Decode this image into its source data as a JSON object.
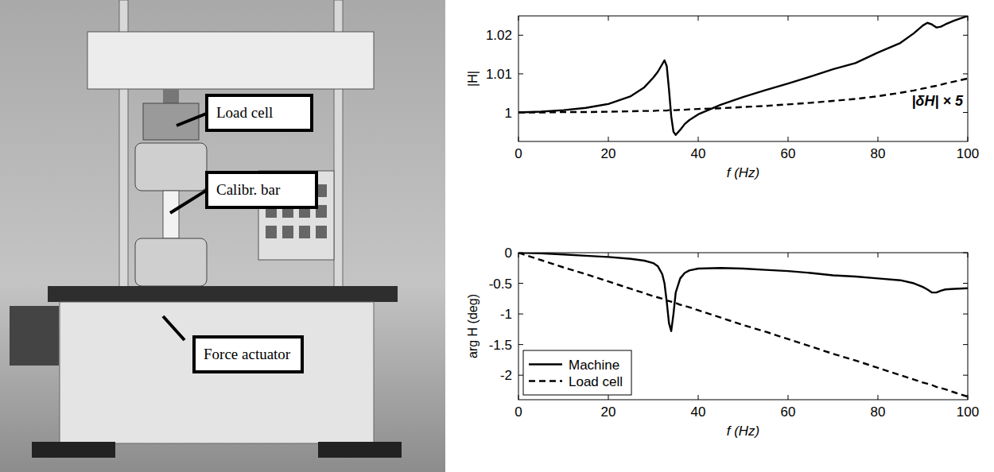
{
  "figure": {
    "labels": [
      "Load cell",
      "Calibr. bar",
      "Force actuator"
    ]
  },
  "chart_data": [
    {
      "type": "line",
      "y_label": "|H|",
      "x_label": "f (Hz)",
      "annotations": [
        "|δH| × 5"
      ],
      "x": [
        0,
        5,
        10,
        15,
        20,
        25,
        28,
        30,
        31,
        32,
        32.5,
        33,
        33.5,
        34,
        34.5,
        35,
        36,
        37,
        38,
        40,
        45,
        50,
        55,
        60,
        65,
        70,
        75,
        80,
        85,
        88,
        90,
        91,
        92,
        93,
        94,
        95,
        97,
        100
      ],
      "xlim": [
        0,
        100
      ],
      "xticks": [
        0,
        20,
        40,
        60,
        80,
        100
      ],
      "ylim": [
        0.9925,
        1.025
      ],
      "yticks": [
        1,
        1.01,
        1.02
      ],
      "series": [
        {
          "color": "#000000",
          "line_style": "solid",
          "values": [
            1.0,
            1.0002,
            1.0006,
            1.0012,
            1.0022,
            1.0042,
            1.0065,
            1.009,
            1.0105,
            1.0125,
            1.0135,
            1.012,
            1.006,
            0.999,
            0.995,
            0.9942,
            0.9955,
            0.997,
            0.998,
            0.9995,
            1.002,
            1.004,
            1.0058,
            1.0075,
            1.0093,
            1.0112,
            1.0128,
            1.0155,
            1.018,
            1.0205,
            1.0225,
            1.0232,
            1.0228,
            1.022,
            1.0222,
            1.0228,
            1.0238,
            1.025
          ]
        },
        {
          "color": "#000000",
          "line_style": "dashed",
          "values": [
            1.0,
            1.0,
            1.0001,
            1.0001,
            1.0002,
            1.0003,
            1.0004,
            1.0004,
            1.0005,
            1.0005,
            1.0005,
            1.0005,
            1.0006,
            1.0006,
            1.0006,
            1.0006,
            1.0007,
            1.0007,
            1.0008,
            1.0009,
            1.0011,
            1.0014,
            1.0017,
            1.0021,
            1.0025,
            1.003,
            1.0035,
            1.0042,
            1.0051,
            1.0057,
            1.0062,
            1.0064,
            1.0067,
            1.0069,
            1.0072,
            1.0075,
            1.008,
            1.0088
          ]
        }
      ]
    },
    {
      "type": "line",
      "y_label": "arg H  (deg)",
      "x_label": "f (Hz)",
      "legend": "lower left",
      "x": [
        0,
        5,
        10,
        15,
        20,
        25,
        28,
        30,
        31,
        32,
        32.5,
        33,
        33.5,
        34,
        34.5,
        35,
        36,
        37,
        38,
        40,
        45,
        50,
        55,
        60,
        65,
        70,
        75,
        80,
        85,
        88,
        90,
        91,
        92,
        93,
        94,
        95,
        97,
        100
      ],
      "xlim": [
        0,
        100
      ],
      "xticks": [
        0,
        20,
        40,
        60,
        80,
        100
      ],
      "ylim": [
        -2.4,
        0
      ],
      "yticks": [
        -2,
        -1.5,
        -1,
        -0.5,
        0
      ],
      "series": [
        {
          "name": "Machine",
          "color": "#000000",
          "line_style": "solid",
          "values": [
            0,
            -0.01,
            -0.03,
            -0.05,
            -0.07,
            -0.1,
            -0.13,
            -0.17,
            -0.22,
            -0.35,
            -0.5,
            -0.8,
            -1.15,
            -1.28,
            -1.0,
            -0.65,
            -0.42,
            -0.33,
            -0.29,
            -0.26,
            -0.25,
            -0.26,
            -0.28,
            -0.3,
            -0.33,
            -0.37,
            -0.39,
            -0.42,
            -0.45,
            -0.5,
            -0.56,
            -0.6,
            -0.65,
            -0.65,
            -0.62,
            -0.6,
            -0.59,
            -0.58
          ]
        },
        {
          "name": "Load cell",
          "color": "#000000",
          "line_style": "dashed",
          "values": [
            0,
            -0.12,
            -0.24,
            -0.35,
            -0.47,
            -0.59,
            -0.66,
            -0.71,
            -0.73,
            -0.75,
            -0.76,
            -0.78,
            -0.79,
            -0.8,
            -0.81,
            -0.82,
            -0.85,
            -0.87,
            -0.89,
            -0.94,
            -1.06,
            -1.18,
            -1.29,
            -1.41,
            -1.53,
            -1.65,
            -1.76,
            -1.88,
            -2.0,
            -2.07,
            -2.12,
            -2.14,
            -2.16,
            -2.19,
            -2.21,
            -2.23,
            -2.28,
            -2.35
          ]
        }
      ]
    }
  ]
}
